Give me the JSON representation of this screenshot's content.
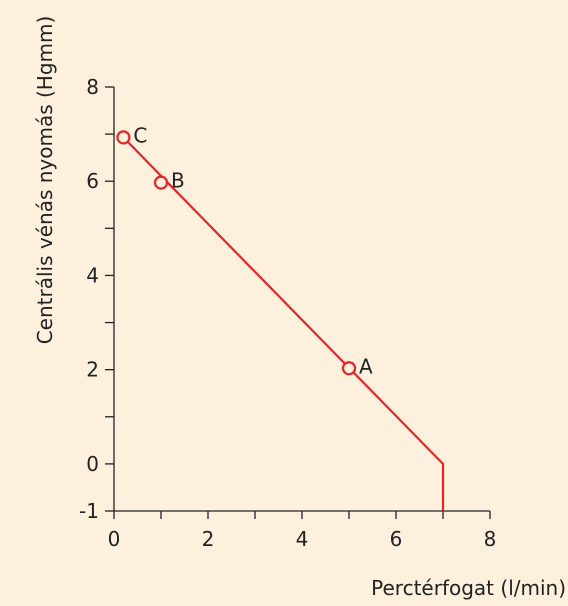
{
  "chart_data": {
    "type": "line",
    "title": "",
    "xlabel": "Perctérfogat (l/min)",
    "ylabel": "Centrális vénás nyomás (Hgmm)",
    "xlim": [
      0,
      8
    ],
    "ylim": [
      -1,
      8
    ],
    "x_ticks": [
      0,
      1,
      2,
      3,
      4,
      5,
      6,
      7,
      8
    ],
    "x_tick_labels": [
      "0",
      "",
      "2",
      "",
      "4",
      "",
      "6",
      "",
      "8"
    ],
    "y_ticks": [
      -1,
      0,
      1,
      2,
      3,
      4,
      5,
      6,
      7,
      8
    ],
    "y_tick_labels": [
      "-1",
      "0",
      "",
      "2",
      "",
      "4",
      "",
      "6",
      "",
      "8"
    ],
    "grid": false,
    "series": [
      {
        "color": "#e3262c",
        "x": [
          0.2,
          7,
          7
        ],
        "y": [
          6.93,
          0,
          -1
        ]
      }
    ],
    "points": [
      {
        "label": "C",
        "x": 0.2,
        "y": 6.93
      },
      {
        "label": "B",
        "x": 1,
        "y": 5.97
      },
      {
        "label": "A",
        "x": 5,
        "y": 2.03
      }
    ],
    "colors": {
      "background": "#fdf0dd",
      "line": "#e3262c",
      "axis": "#222222"
    }
  }
}
